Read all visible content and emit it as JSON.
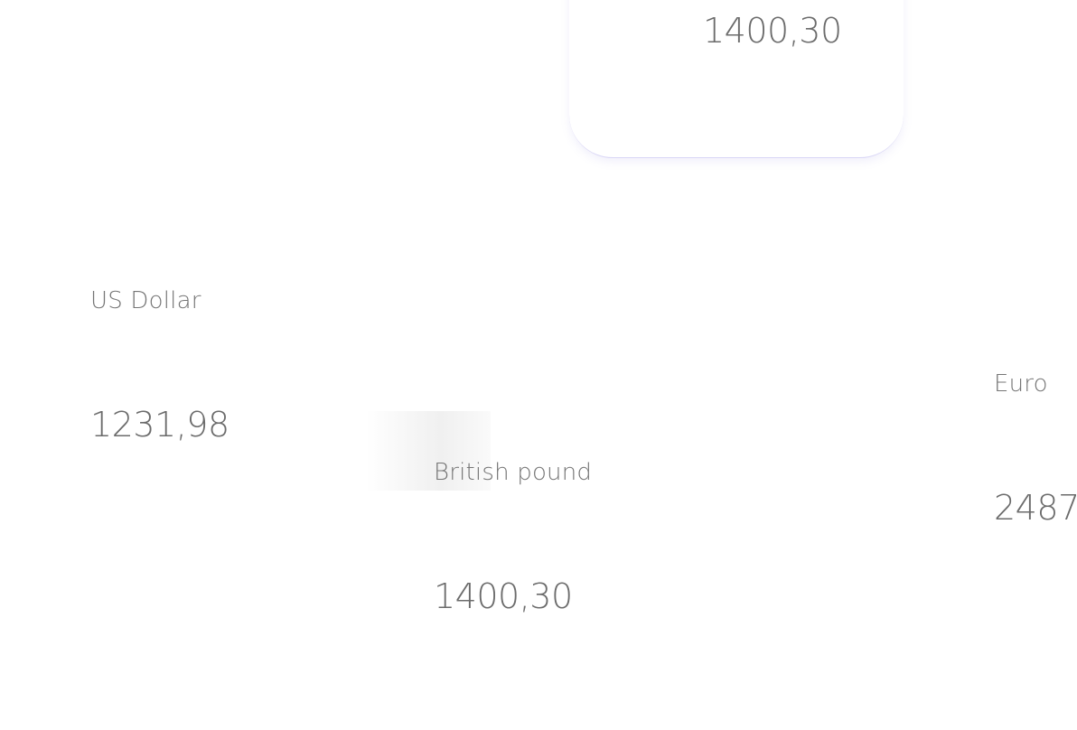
{
  "cards": [
    {
      "name": "",
      "value": "1400,30"
    },
    {
      "name": "US Dollar",
      "value": "1231,98"
    },
    {
      "name": "British pound",
      "value": "1400,30"
    },
    {
      "name": "Euro",
      "value": "2487"
    }
  ]
}
